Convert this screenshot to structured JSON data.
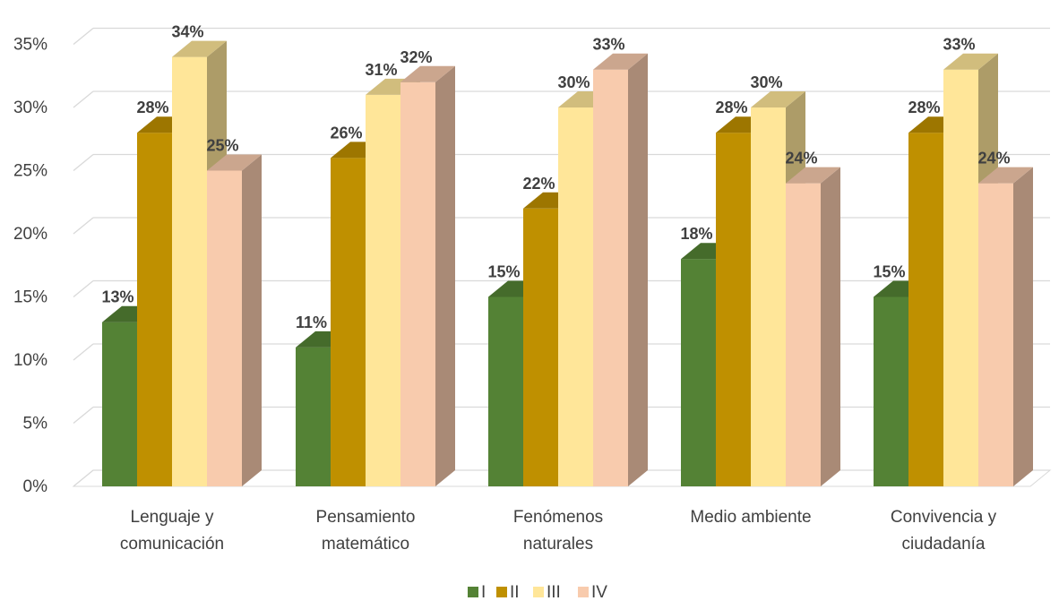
{
  "chart_data": {
    "type": "bar",
    "style": "3d-clustered-column",
    "categories": [
      [
        "Lenguaje y",
        "comunicación"
      ],
      [
        "Pensamiento",
        "matemático"
      ],
      [
        "Fenómenos",
        "naturales"
      ],
      [
        "Medio ambiente"
      ],
      [
        "Convivencia y",
        "ciudadanía"
      ]
    ],
    "series": [
      {
        "name": "I",
        "color": "#548235",
        "values": [
          13,
          11,
          15,
          18,
          15
        ]
      },
      {
        "name": "II",
        "color": "#BF9000",
        "values": [
          28,
          26,
          22,
          28,
          28
        ]
      },
      {
        "name": "III",
        "color": "#FFE699",
        "values": [
          34,
          31,
          30,
          30,
          33
        ]
      },
      {
        "name": "IV",
        "color": "#F8CBAD",
        "values": [
          25,
          32,
          33,
          24,
          24
        ]
      }
    ],
    "ylim": [
      0,
      35
    ],
    "yticks": [
      "0%",
      "5%",
      "10%",
      "15%",
      "20%",
      "25%",
      "30%",
      "35%"
    ],
    "data_labels": [
      [
        "13%",
        "28%",
        "34%",
        "25%"
      ],
      [
        "11%",
        "26%",
        "31%",
        "32%"
      ],
      [
        "15%",
        "22%",
        "30%",
        "33%"
      ],
      [
        "18%",
        "28%",
        "30%",
        "24%"
      ],
      [
        "15%",
        "28%",
        "33%",
        "24%"
      ]
    ],
    "grid": true,
    "legend_position": "bottom",
    "title": "",
    "xlabel": "",
    "ylabel": ""
  }
}
